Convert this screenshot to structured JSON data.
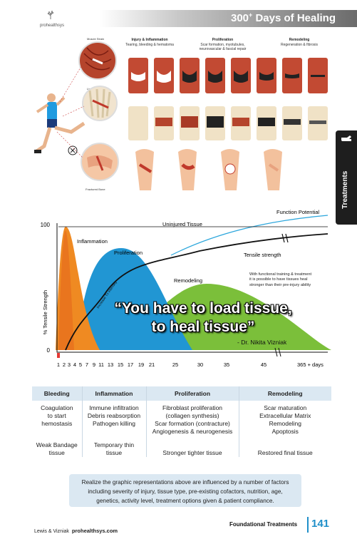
{
  "header": {
    "title": "300",
    "title_sup": "+",
    "title_rest": " Days of Healing",
    "logo_text": "prohealthsys"
  },
  "side_tab": {
    "label": "Treatments",
    "icon": "hand-pointer-icon"
  },
  "illustration": {
    "stages": [
      {
        "title": "Injury & Inflammation",
        "subtitle": "Tearing, bleeding & hematoma"
      },
      {
        "title": "Proliferation",
        "subtitle": "Scar formation, myotubules, neurovascular & fascial repair"
      },
      {
        "title": "Remodeling",
        "subtitle": "Regeneration & fibrosis"
      }
    ],
    "part_labels": {
      "muscle": "Muscle Strain",
      "ligament": "Ligament Tear",
      "bone": "Fractured Bone"
    }
  },
  "chart_data": {
    "type": "area",
    "title": "",
    "ylabel": "% Tensile Strength",
    "y_ticks": [
      "0",
      "100"
    ],
    "x_tick_labels": [
      "1",
      "2",
      "3",
      "4",
      "5",
      "7",
      "9",
      "11",
      "13",
      "15",
      "17",
      "19",
      "21",
      "25",
      "30",
      "35",
      "45",
      "365 + days"
    ],
    "series": [
      {
        "name": "Inflammation",
        "color": "#ef8a22",
        "peak": 97
      },
      {
        "name": "Proliferation",
        "color": "#2196d3",
        "peak": 80
      },
      {
        "name": "Remodeling",
        "color": "#7bbf3a",
        "peak": 50
      },
      {
        "name": "Tensile strength",
        "color": "#111111"
      },
      {
        "name": "Uninjured Tissue",
        "color": "#111111"
      },
      {
        "name": "Function Potential",
        "color": "#2ba6dc"
      }
    ],
    "annotations": {
      "increase": "Increase Tx intensity",
      "note": "With functional training & treatment it is possible to have tissues heal stronger than their pre-injury ability"
    }
  },
  "quote": {
    "line1": "“You have to load tissue,",
    "line2": "to heal tissue”",
    "author": "- Dr. Nikita Vizniak"
  },
  "table": {
    "headers": [
      "Bleeding",
      "Inflammation",
      "Proliferation",
      "Remodeling"
    ],
    "row1": [
      [
        "Coagulation",
        "to start",
        "hemostasis"
      ],
      [
        "Immune infiltration",
        "Debris reabsorption",
        "Pathogen killing"
      ],
      [
        "Fibroblast proliferation",
        "(collagen synthesis)",
        "Scar formation (contracture)",
        "Angiogenesis & neurogenesis"
      ],
      [
        "Scar maturation",
        "Extracellular Matrix",
        "Remodeling",
        "Apoptosis"
      ]
    ],
    "row2": [
      [
        "Weak Bandage",
        "tissue"
      ],
      [
        "Temporary thin",
        "tissue"
      ],
      [
        "Stronger tighter tissue"
      ],
      [
        "Restored final tissue"
      ]
    ]
  },
  "note": {
    "line1": "Realize the graphic representations above are influenced by a number of factors",
    "line2": "including severity of injury, tissue type, pre-existing cofactors, nutrition, age,",
    "line3": "genetics, activity level, treatment options given & patient compliance."
  },
  "footer": {
    "authors": "Lewis & Vizniak",
    "site": "prohealthsys.com",
    "section": "Foundational Treatments",
    "page": "141"
  }
}
